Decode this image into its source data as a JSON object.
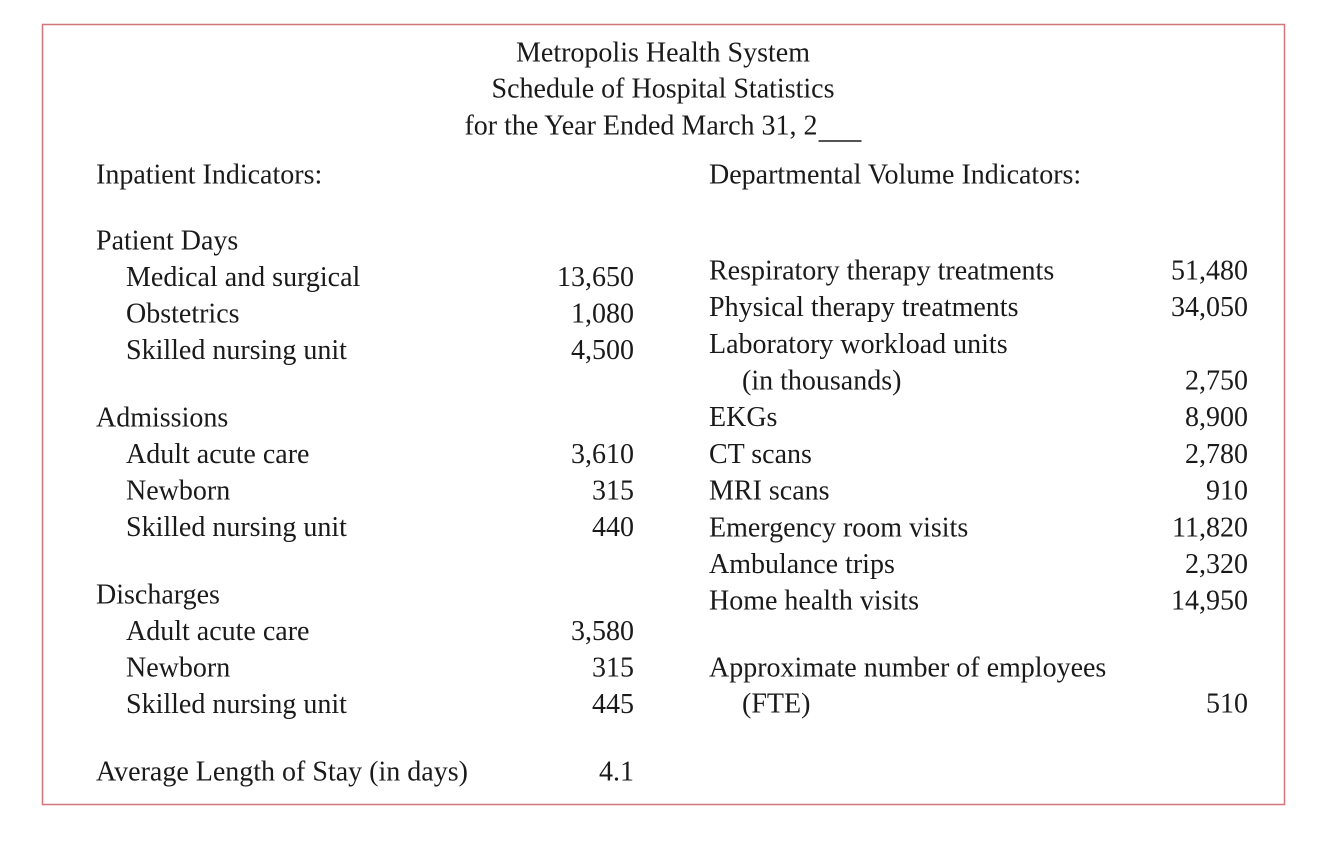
{
  "header": {
    "lines": [
      "Metropolis Health System",
      "Schedule of Hospital Statistics",
      "for the Year Ended March 31, 2"
    ]
  },
  "left": {
    "heading": "Inpatient Indicators:",
    "groups": [
      {
        "title": "Patient Days",
        "rows": [
          [
            "Medical and surgical",
            "13,650"
          ],
          [
            "Obstetrics",
            "1,080"
          ],
          [
            "Skilled nursing unit",
            "4,500"
          ]
        ]
      },
      {
        "title": "Admissions",
        "rows": [
          [
            "Adult acute care",
            "3,610"
          ],
          [
            "Newborn",
            "315"
          ],
          [
            "Skilled nursing unit",
            "440"
          ]
        ]
      },
      {
        "title": "Discharges",
        "rows": [
          [
            "Adult acute care",
            "3,580"
          ],
          [
            "Newborn",
            "315"
          ],
          [
            "Skilled nursing unit",
            "445"
          ]
        ]
      }
    ],
    "average": [
      "Average Length of Stay (in days)",
      "4.1"
    ]
  },
  "right": {
    "heading": "Departmental Volume Indicators:",
    "rows": [
      [
        "Respiratory therapy treatments",
        "51,480"
      ],
      [
        "Physical therapy treatments",
        "34,050"
      ],
      [
        "Laboratory workload units",
        "(in thousands)",
        "2,750"
      ],
      [
        "EKGs",
        "8,900"
      ],
      [
        "CT scans",
        "2,780"
      ],
      [
        "MRI scans",
        "910"
      ],
      [
        "Emergency room visits",
        "11,820"
      ],
      [
        "Ambulance trips",
        "2,320"
      ],
      [
        "Home health visits",
        "14,950"
      ]
    ],
    "employees": [
      "Approximate number of employees",
      "(FTE)",
      "510"
    ]
  }
}
